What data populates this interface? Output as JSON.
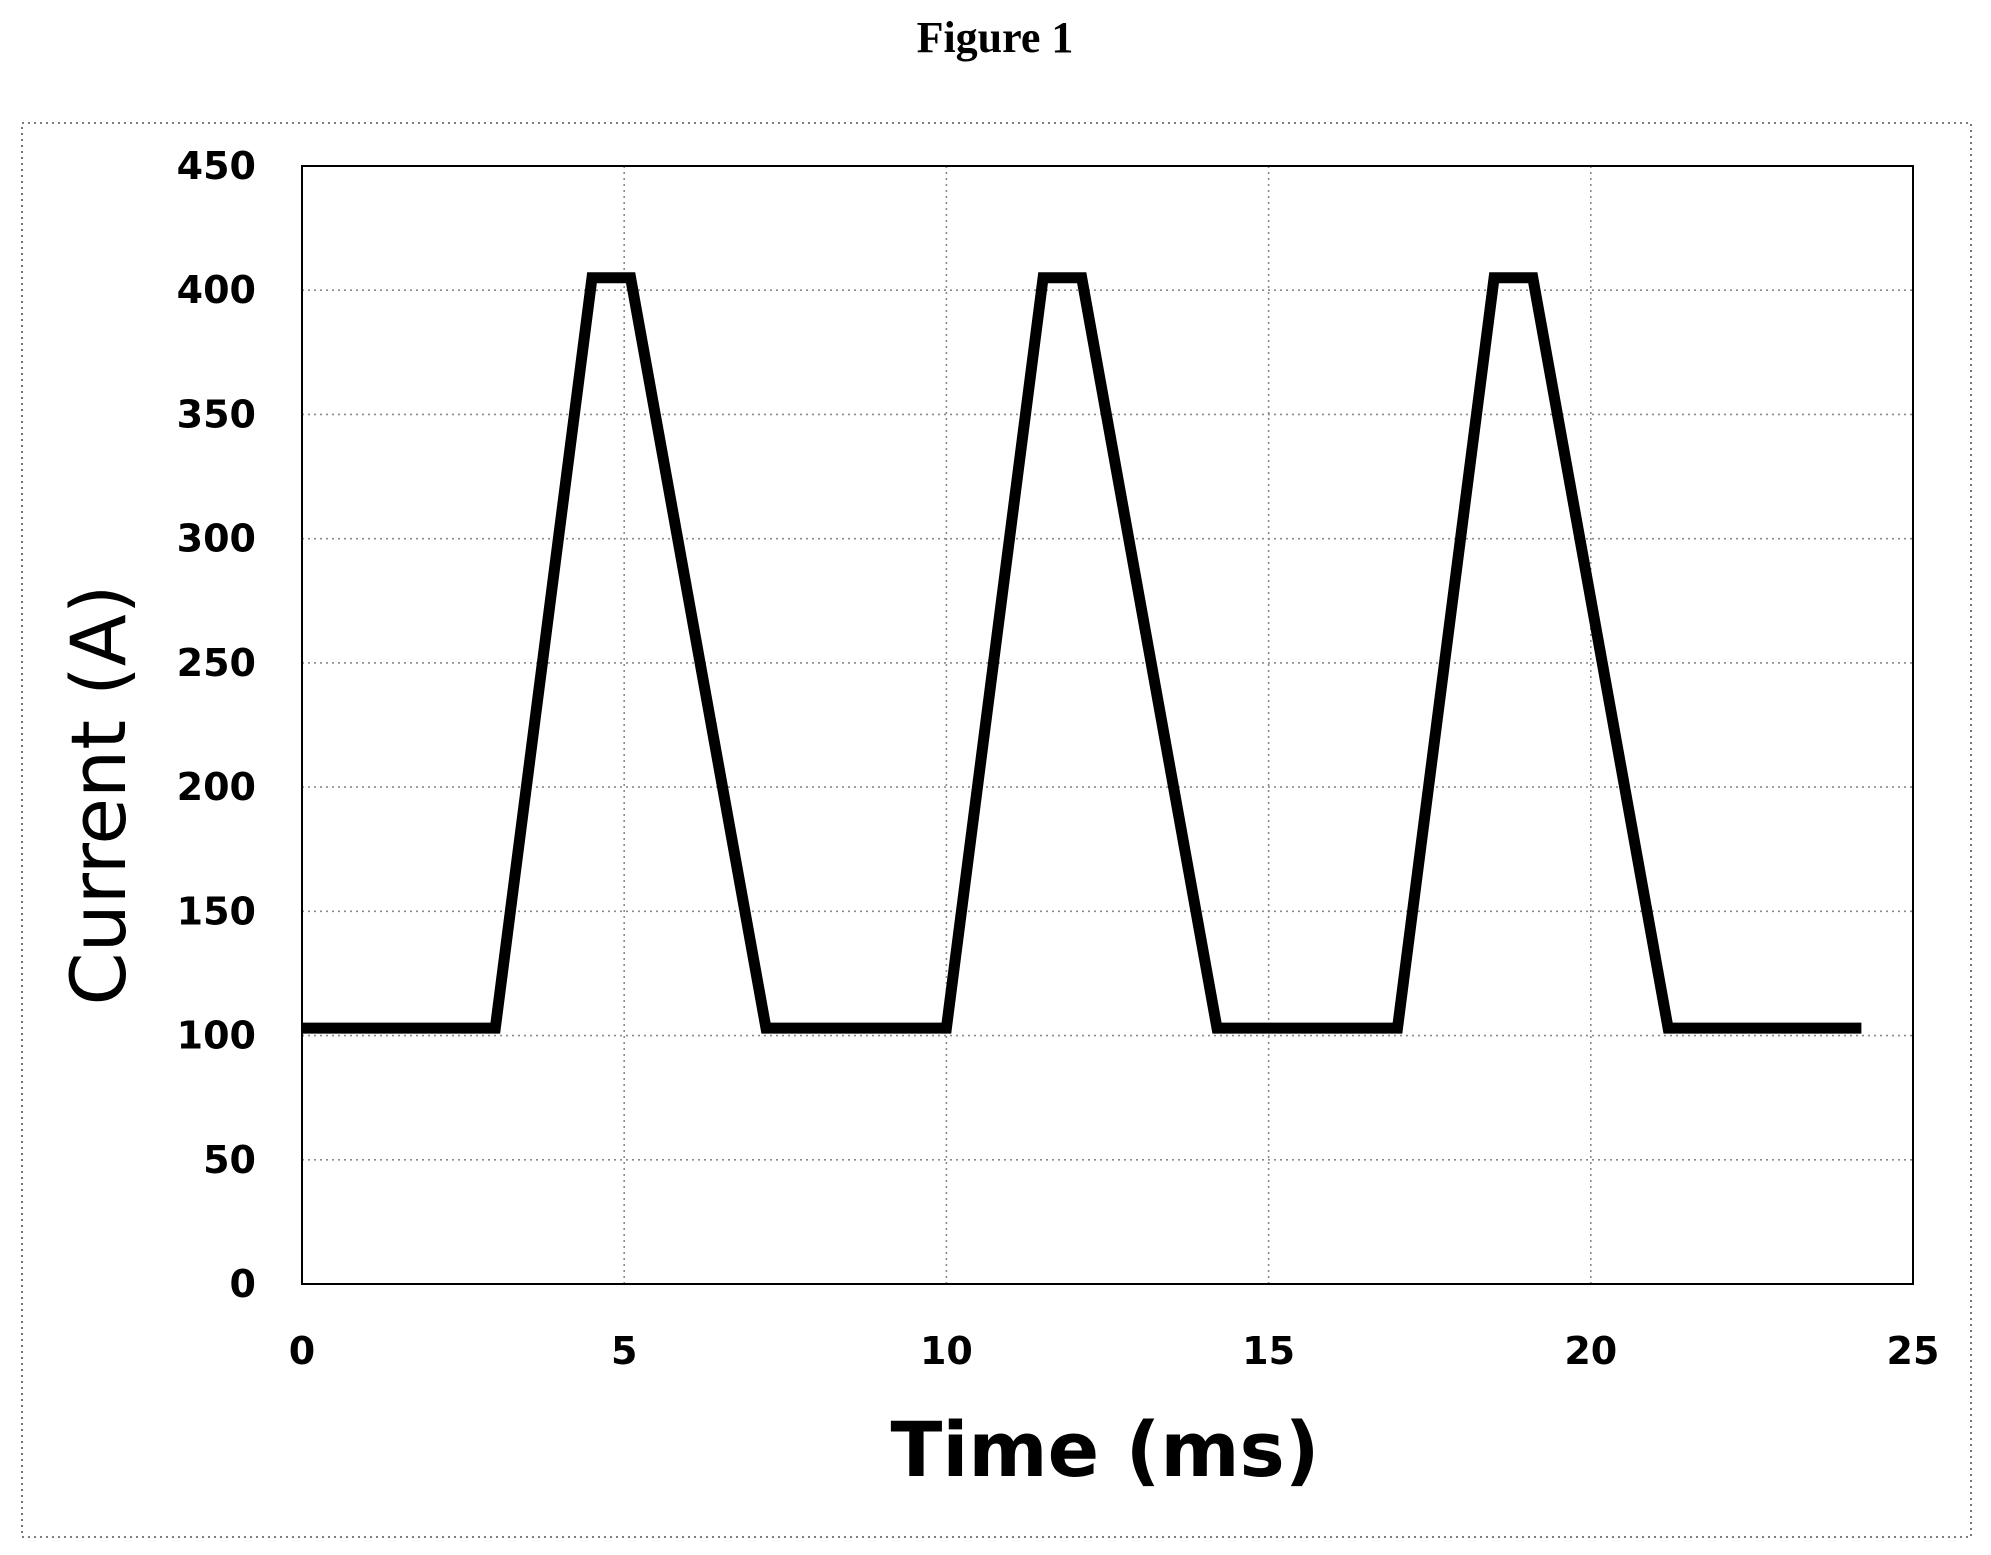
{
  "figure_label": "Figure 1",
  "chart_data": {
    "type": "line",
    "title": "",
    "xlabel": "Time (ms)",
    "ylabel": "Current (A)",
    "xlim": [
      0,
      25
    ],
    "ylim": [
      0,
      450
    ],
    "x_ticks": [
      0,
      5,
      10,
      15,
      20,
      25
    ],
    "y_ticks": [
      0,
      50,
      100,
      150,
      200,
      250,
      300,
      350,
      400,
      450
    ],
    "grid": true,
    "legend": "none",
    "series": [
      {
        "color": "#000000",
        "x": [
          0,
          3,
          4.5,
          5.1,
          7.2,
          10,
          11.5,
          12.1,
          14.2,
          17,
          18.5,
          19.1,
          21.2,
          24.2
        ],
        "y": [
          103,
          103,
          405,
          405,
          103,
          103,
          405,
          405,
          103,
          103,
          405,
          405,
          103,
          103
        ]
      }
    ]
  }
}
